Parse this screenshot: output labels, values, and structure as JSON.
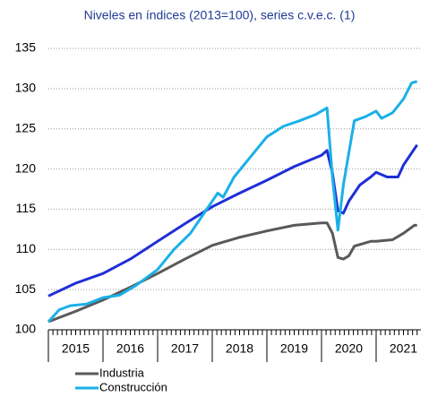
{
  "chart_data": {
    "type": "line",
    "title": "Niveles en índices (2013=100), series c.v.e.c. (1)",
    "xlim": [
      2015,
      2021.82
    ],
    "xticks": [
      2015,
      2016,
      2017,
      2018,
      2019,
      2020,
      2021
    ],
    "ylim": [
      100,
      135
    ],
    "yticks": [
      100,
      105,
      110,
      115,
      120,
      125,
      130,
      135
    ],
    "grid": true,
    "series": [
      {
        "color": "#1f2fd6",
        "x": [
          2015.0,
          2015.5,
          2016.0,
          2016.5,
          2017.0,
          2017.5,
          2018.0,
          2018.5,
          2019.0,
          2019.5,
          2020.0,
          2020.1,
          2020.2,
          2020.3,
          2020.4,
          2020.5,
          2020.7,
          2020.9,
          2021.0,
          2021.2,
          2021.4,
          2021.5,
          2021.75
        ],
        "values": [
          104.2,
          105.8,
          107.0,
          108.8,
          111.0,
          113.2,
          115.3,
          117.0,
          118.6,
          120.3,
          121.7,
          122.3,
          119.5,
          114.8,
          114.5,
          116.0,
          118.0,
          119.0,
          119.6,
          119.0,
          119.0,
          120.5,
          123.0
        ]
      },
      {
        "name": "Industria",
        "color": "#595959",
        "x": [
          2015.0,
          2015.5,
          2016.0,
          2016.5,
          2017.0,
          2017.5,
          2018.0,
          2018.5,
          2019.0,
          2019.5,
          2020.0,
          2020.1,
          2020.2,
          2020.3,
          2020.4,
          2020.5,
          2020.6,
          2020.9,
          2021.0,
          2021.3,
          2021.5,
          2021.7,
          2021.75
        ],
        "values": [
          101.0,
          102.3,
          103.7,
          105.3,
          107.0,
          108.8,
          110.5,
          111.5,
          112.3,
          113.0,
          113.3,
          113.3,
          112.0,
          109.0,
          108.8,
          109.2,
          110.4,
          111.0,
          111.0,
          111.2,
          112.0,
          113.0,
          113.0
        ]
      },
      {
        "name": "Construcción",
        "color": "#1ab0e8",
        "x": [
          2015.0,
          2015.2,
          2015.4,
          2015.7,
          2016.0,
          2016.3,
          2016.6,
          2017.0,
          2017.3,
          2017.6,
          2017.9,
          2018.1,
          2018.2,
          2018.4,
          2018.7,
          2019.0,
          2019.3,
          2019.6,
          2019.9,
          2020.1,
          2020.2,
          2020.3,
          2020.4,
          2020.6,
          2020.8,
          2021.0,
          2021.1,
          2021.3,
          2021.5,
          2021.65,
          2021.75
        ],
        "values": [
          101.0,
          102.5,
          103.0,
          103.2,
          104.0,
          104.3,
          105.5,
          107.5,
          110.0,
          112.0,
          115.0,
          117.0,
          116.5,
          119.0,
          121.5,
          124.0,
          125.3,
          126.0,
          126.8,
          127.6,
          119.0,
          112.4,
          118.0,
          126.0,
          126.5,
          127.2,
          126.3,
          127.0,
          128.7,
          130.7,
          130.9
        ]
      }
    ]
  }
}
